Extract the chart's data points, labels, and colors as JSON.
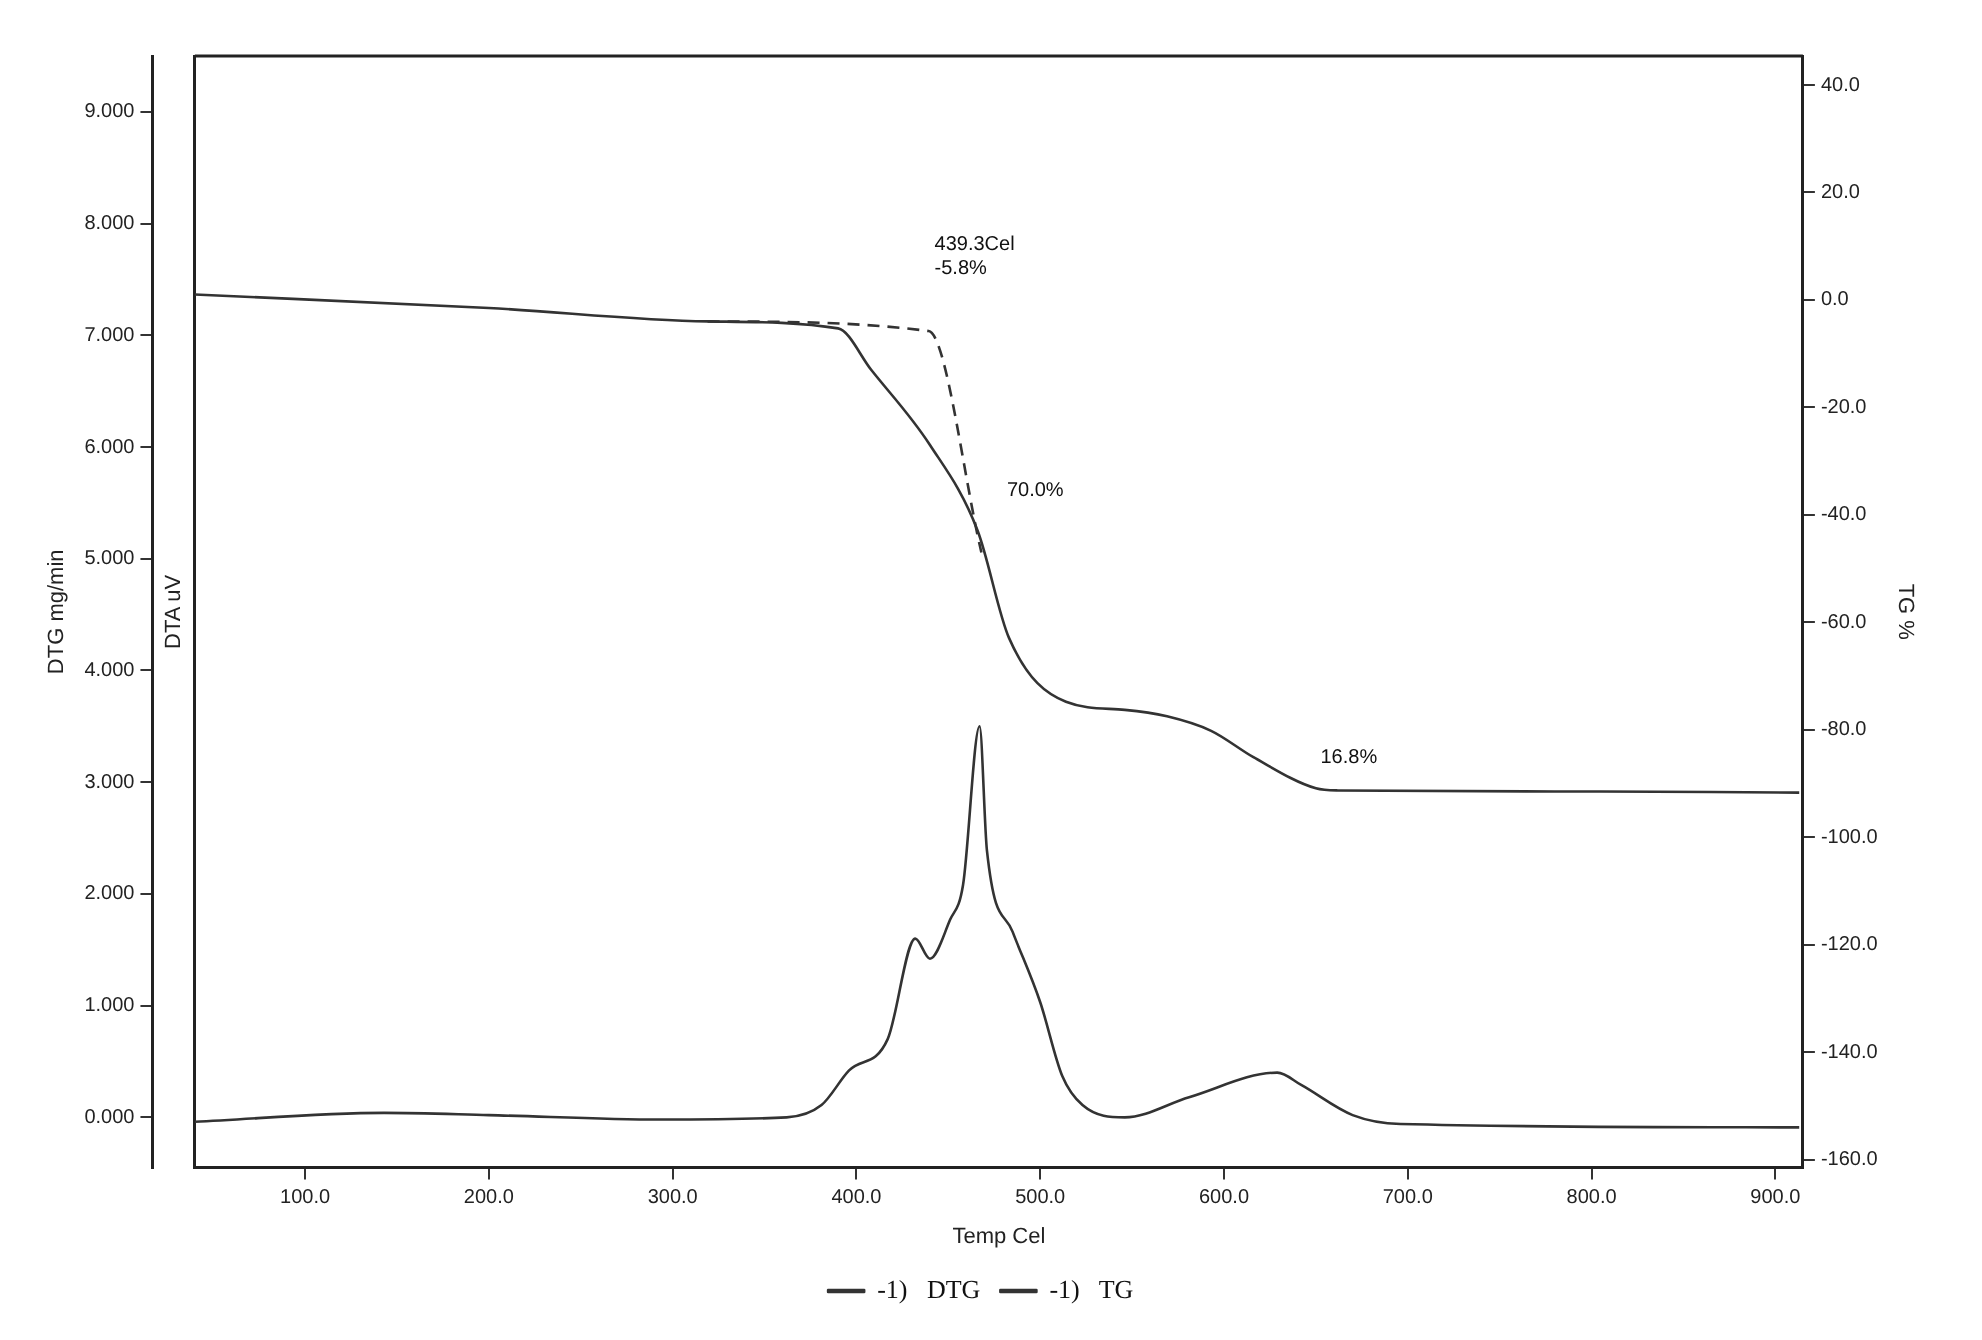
{
  "chart_data": {
    "type": "line",
    "xlabel": "Temp Cel",
    "ylabel": "DTG mg/min",
    "y3label": "DTA uV",
    "y2label": "TG %",
    "xlim": [
      40,
      915
    ],
    "xticks": [
      {
        "value": 100,
        "label": "100.0"
      },
      {
        "value": 200,
        "label": "200.0"
      },
      {
        "value": 300,
        "label": "300.0"
      },
      {
        "value": 400,
        "label": "400.0"
      },
      {
        "value": 500,
        "label": "500.0"
      },
      {
        "value": 600,
        "label": "600.0"
      },
      {
        "value": 700,
        "label": "700.0"
      },
      {
        "value": 800,
        "label": "800.0"
      },
      {
        "value": 900,
        "label": "900.0"
      }
    ],
    "ylim": [
      -0.45,
      9.5
    ],
    "yticks": [
      {
        "value": 0,
        "label": "0.000"
      },
      {
        "value": 1,
        "label": "1.000"
      },
      {
        "value": 2,
        "label": "2.000"
      },
      {
        "value": 3,
        "label": "3.000"
      },
      {
        "value": 4,
        "label": "4.000"
      },
      {
        "value": 5,
        "label": "5.000"
      },
      {
        "value": 6,
        "label": "6.000"
      },
      {
        "value": 7,
        "label": "7.000"
      },
      {
        "value": 8,
        "label": "8.000"
      },
      {
        "value": 9,
        "label": "9.000"
      }
    ],
    "y2lim": [
      -161.5,
      45.4
    ],
    "y2ticks": [
      {
        "value": -160,
        "label": "-160.0"
      },
      {
        "value": -140,
        "label": "-140.0"
      },
      {
        "value": -120,
        "label": "-120.0"
      },
      {
        "value": -100,
        "label": "-100.0"
      },
      {
        "value": -80,
        "label": "-80.0"
      },
      {
        "value": -60,
        "label": "-60.0"
      },
      {
        "value": -40,
        "label": "-40.0"
      },
      {
        "value": -20,
        "label": "-20.0"
      },
      {
        "value": 0,
        "label": "0.0"
      },
      {
        "value": 20,
        "label": "20.0"
      },
      {
        "value": 40,
        "label": "40.0"
      }
    ],
    "grid": false,
    "legend": "bottom",
    "marker": "none",
    "series": [
      {
        "name": "-1)   DTG",
        "color": "#333333",
        "x": [
          40,
          143,
          200,
          293,
          362,
          381,
          396,
          417,
          432,
          440,
          451,
          458,
          467,
          471,
          485,
          500,
          512,
          523,
          546,
          581,
          629,
          642,
          670,
          696,
          913
        ],
        "values": [
          -0.04,
          0.04,
          0.02,
          -0.02,
          0.0,
          0.11,
          0.42,
          0.7,
          1.6,
          1.42,
          1.77,
          2.08,
          3.5,
          2.39,
          1.66,
          1.03,
          0.37,
          0.11,
          0.0,
          0.18,
          0.4,
          0.29,
          0.02,
          -0.06,
          -0.09
        ]
      },
      {
        "name": "-1)   TG",
        "color": "#333333",
        "axis": "y2",
        "x": [
          40,
          200,
          319,
          390,
          408,
          440,
          466,
          483,
          514,
          546,
          569,
          593,
          616,
          650,
          662,
          800,
          913
        ],
        "values": [
          1.0,
          -1.5,
          -4.0,
          -5.3,
          -13,
          -27,
          -43,
          -62.9,
          -74.8,
          -76.3,
          -77.5,
          -80.2,
          -85.1,
          -90.9,
          -91.3,
          -91.5,
          -91.7
        ]
      },
      {
        "color": "#333333",
        "axis": "y2",
        "line_style": "dashed",
        "x": [
          319,
          439.3,
          468
        ],
        "values": [
          -4.0,
          -5.8,
          -47
        ]
      }
    ],
    "annotations": [
      "439.3Cel\n-5.8%",
      "70.0%",
      "16.8%"
    ]
  }
}
